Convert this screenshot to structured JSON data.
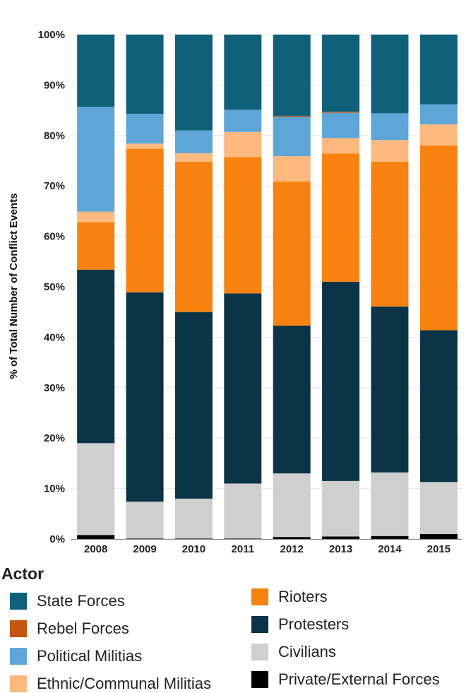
{
  "chart_data": {
    "type": "bar",
    "stacked": true,
    "ylabel": "% of Total Number of Conflict Events",
    "xlabel": "",
    "ylim": [
      0,
      100
    ],
    "yticks": [
      "0%",
      "10%",
      "20%",
      "30%",
      "40%",
      "50%",
      "60%",
      "70%",
      "80%",
      "90%",
      "100%"
    ],
    "categories": [
      "2008",
      "2009",
      "2010",
      "2011",
      "2012",
      "2013",
      "2014",
      "2015"
    ],
    "legend_title": "Actor",
    "legend_position": "bottom",
    "series": [
      {
        "name": "Private/External Forces",
        "color": "#000000",
        "values": [
          0.8,
          0.1,
          0.1,
          0.1,
          0.4,
          0.5,
          0.6,
          1.0
        ]
      },
      {
        "name": "Civilians",
        "color": "#cfcfcf",
        "values": [
          18.2,
          7.3,
          7.9,
          10.9,
          12.6,
          11.0,
          12.6,
          10.3
        ]
      },
      {
        "name": "Protesters",
        "color": "#0b3546",
        "values": [
          34.4,
          41.5,
          37.0,
          37.7,
          29.3,
          39.5,
          32.9,
          30.1
        ]
      },
      {
        "name": "Rioters",
        "color": "#f8820f",
        "values": [
          9.4,
          28.5,
          29.8,
          27.0,
          28.6,
          25.4,
          28.7,
          36.6
        ]
      },
      {
        "name": "Ethnic/Communal Militias",
        "color": "#fdb97e",
        "values": [
          2.1,
          1.0,
          1.7,
          5.0,
          5.0,
          3.1,
          4.3,
          4.2
        ]
      },
      {
        "name": "Political Militias",
        "color": "#5da6d7",
        "values": [
          20.8,
          5.9,
          4.5,
          4.4,
          7.8,
          5.0,
          5.3,
          4.0
        ]
      },
      {
        "name": "Rebel Forces",
        "color": "#c6550f",
        "values": [
          0,
          0,
          0,
          0,
          0.2,
          0.2,
          0,
          0
        ]
      },
      {
        "name": "State Forces",
        "color": "#0e6178",
        "values": [
          14.3,
          15.7,
          19.0,
          14.9,
          16.1,
          15.3,
          15.6,
          13.8
        ]
      }
    ],
    "legend": [
      {
        "name": "State Forces",
        "color": "#0e6178"
      },
      {
        "name": "Rebel Forces",
        "color": "#c6550f"
      },
      {
        "name": "Political Militias",
        "color": "#5da6d7"
      },
      {
        "name": "Ethnic/Communal Militias",
        "color": "#fdb97e"
      },
      {
        "name": "Rioters",
        "color": "#f8820f"
      },
      {
        "name": "Protesters",
        "color": "#0b3546"
      },
      {
        "name": "Civilians",
        "color": "#cfcfcf"
      },
      {
        "name": "Private/External Forces",
        "color": "#000000"
      }
    ]
  }
}
